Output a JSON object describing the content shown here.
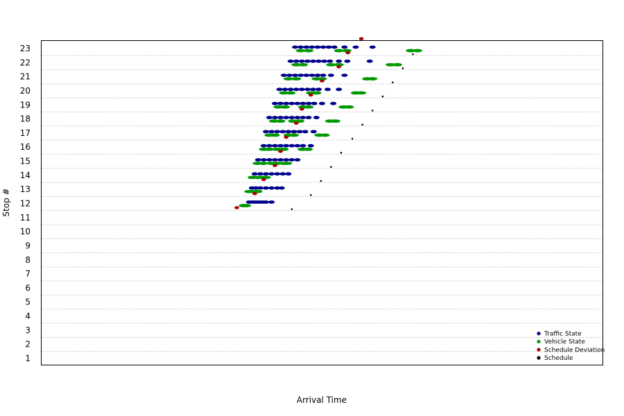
{
  "chart_data": {
    "type": "scatter",
    "title": "",
    "xlabel": "Arrival Time",
    "ylabel": "Stop #",
    "ylim": [
      0.5,
      23.5
    ],
    "xlim": [
      0,
      1
    ],
    "y_ticks": [
      "1",
      "2",
      "3",
      "4",
      "5",
      "6",
      "7",
      "8",
      "9",
      "10",
      "11",
      "12",
      "13",
      "14",
      "15",
      "16",
      "17",
      "18",
      "19",
      "20",
      "21",
      "22",
      "23"
    ],
    "x_ticks": [],
    "grid": "horizontal dotted",
    "legend_placement": "bottom-right",
    "colors": {
      "Traffic State": "#00008b",
      "Vehicle State": "#009900",
      "Schedule Deviation": "#aa0000",
      "Schedule": "#000000"
    },
    "series": [
      {
        "name": "Traffic State",
        "points": [
          [
            0.37,
            12.1
          ],
          [
            0.375,
            12.1
          ],
          [
            0.38,
            12.1
          ],
          [
            0.385,
            12.1
          ],
          [
            0.39,
            12.1
          ],
          [
            0.395,
            12.1
          ],
          [
            0.4,
            12.1
          ],
          [
            0.41,
            12.1
          ],
          [
            0.375,
            13.1
          ],
          [
            0.382,
            13.1
          ],
          [
            0.39,
            13.1
          ],
          [
            0.4,
            13.1
          ],
          [
            0.41,
            13.1
          ],
          [
            0.42,
            13.1
          ],
          [
            0.428,
            13.1
          ],
          [
            0.38,
            14.1
          ],
          [
            0.39,
            14.1
          ],
          [
            0.4,
            14.1
          ],
          [
            0.41,
            14.1
          ],
          [
            0.42,
            14.1
          ],
          [
            0.43,
            14.1
          ],
          [
            0.44,
            14.1
          ],
          [
            0.386,
            15.1
          ],
          [
            0.396,
            15.1
          ],
          [
            0.406,
            15.1
          ],
          [
            0.416,
            15.1
          ],
          [
            0.426,
            15.1
          ],
          [
            0.436,
            15.1
          ],
          [
            0.446,
            15.1
          ],
          [
            0.456,
            15.1
          ],
          [
            0.396,
            16.1
          ],
          [
            0.406,
            16.1
          ],
          [
            0.416,
            16.1
          ],
          [
            0.426,
            16.1
          ],
          [
            0.436,
            16.1
          ],
          [
            0.446,
            16.1
          ],
          [
            0.456,
            16.1
          ],
          [
            0.466,
            16.1
          ],
          [
            0.48,
            16.1
          ],
          [
            0.4,
            17.1
          ],
          [
            0.41,
            17.1
          ],
          [
            0.42,
            17.1
          ],
          [
            0.43,
            17.1
          ],
          [
            0.44,
            17.1
          ],
          [
            0.45,
            17.1
          ],
          [
            0.46,
            17.1
          ],
          [
            0.47,
            17.1
          ],
          [
            0.485,
            17.1
          ],
          [
            0.406,
            18.1
          ],
          [
            0.416,
            18.1
          ],
          [
            0.426,
            18.1
          ],
          [
            0.436,
            18.1
          ],
          [
            0.446,
            18.1
          ],
          [
            0.456,
            18.1
          ],
          [
            0.466,
            18.1
          ],
          [
            0.476,
            18.1
          ],
          [
            0.49,
            18.1
          ],
          [
            0.416,
            19.1
          ],
          [
            0.426,
            19.1
          ],
          [
            0.436,
            19.1
          ],
          [
            0.446,
            19.1
          ],
          [
            0.456,
            19.1
          ],
          [
            0.466,
            19.1
          ],
          [
            0.476,
            19.1
          ],
          [
            0.486,
            19.1
          ],
          [
            0.5,
            19.1
          ],
          [
            0.52,
            19.1
          ],
          [
            0.424,
            20.1
          ],
          [
            0.434,
            20.1
          ],
          [
            0.444,
            20.1
          ],
          [
            0.454,
            20.1
          ],
          [
            0.464,
            20.1
          ],
          [
            0.474,
            20.1
          ],
          [
            0.484,
            20.1
          ],
          [
            0.494,
            20.1
          ],
          [
            0.51,
            20.1
          ],
          [
            0.53,
            20.1
          ],
          [
            0.432,
            21.1
          ],
          [
            0.442,
            21.1
          ],
          [
            0.452,
            21.1
          ],
          [
            0.462,
            21.1
          ],
          [
            0.472,
            21.1
          ],
          [
            0.482,
            21.1
          ],
          [
            0.492,
            21.1
          ],
          [
            0.502,
            21.1
          ],
          [
            0.516,
            21.1
          ],
          [
            0.54,
            21.1
          ],
          [
            0.444,
            22.1
          ],
          [
            0.454,
            22.1
          ],
          [
            0.464,
            22.1
          ],
          [
            0.474,
            22.1
          ],
          [
            0.484,
            22.1
          ],
          [
            0.494,
            22.1
          ],
          [
            0.504,
            22.1
          ],
          [
            0.514,
            22.1
          ],
          [
            0.53,
            22.1
          ],
          [
            0.545,
            22.1
          ],
          [
            0.585,
            22.1
          ],
          [
            0.452,
            23.1
          ],
          [
            0.462,
            23.1
          ],
          [
            0.472,
            23.1
          ],
          [
            0.482,
            23.1
          ],
          [
            0.492,
            23.1
          ],
          [
            0.502,
            23.1
          ],
          [
            0.512,
            23.1
          ],
          [
            0.522,
            23.1
          ],
          [
            0.54,
            23.1
          ],
          [
            0.56,
            23.1
          ],
          [
            0.59,
            23.1
          ]
        ]
      },
      {
        "name": "Vehicle State",
        "points": [
          [
            0.36,
            11.85
          ],
          [
            0.365,
            11.85
          ],
          [
            0.37,
            12.85
          ],
          [
            0.378,
            12.85
          ],
          [
            0.385,
            12.85
          ],
          [
            0.376,
            13.85
          ],
          [
            0.386,
            13.85
          ],
          [
            0.396,
            13.85
          ],
          [
            0.4,
            13.85
          ],
          [
            0.385,
            14.85
          ],
          [
            0.395,
            14.85
          ],
          [
            0.41,
            14.85
          ],
          [
            0.42,
            14.85
          ],
          [
            0.432,
            14.85
          ],
          [
            0.438,
            14.85
          ],
          [
            0.396,
            15.85
          ],
          [
            0.406,
            15.85
          ],
          [
            0.42,
            15.85
          ],
          [
            0.432,
            15.85
          ],
          [
            0.465,
            15.85
          ],
          [
            0.475,
            15.85
          ],
          [
            0.406,
            16.85
          ],
          [
            0.416,
            16.85
          ],
          [
            0.44,
            16.85
          ],
          [
            0.45,
            16.85
          ],
          [
            0.495,
            16.85
          ],
          [
            0.505,
            16.85
          ],
          [
            0.414,
            17.85
          ],
          [
            0.426,
            17.85
          ],
          [
            0.448,
            17.85
          ],
          [
            0.46,
            17.85
          ],
          [
            0.514,
            17.85
          ],
          [
            0.524,
            17.85
          ],
          [
            0.422,
            18.85
          ],
          [
            0.434,
            18.85
          ],
          [
            0.466,
            18.85
          ],
          [
            0.476,
            18.85
          ],
          [
            0.538,
            18.85
          ],
          [
            0.548,
            18.85
          ],
          [
            0.432,
            19.85
          ],
          [
            0.444,
            19.85
          ],
          [
            0.48,
            19.85
          ],
          [
            0.49,
            19.85
          ],
          [
            0.56,
            19.85
          ],
          [
            0.57,
            19.85
          ],
          [
            0.44,
            20.85
          ],
          [
            0.454,
            20.85
          ],
          [
            0.49,
            20.85
          ],
          [
            0.5,
            20.85
          ],
          [
            0.58,
            20.85
          ],
          [
            0.59,
            20.85
          ],
          [
            0.454,
            21.85
          ],
          [
            0.466,
            21.85
          ],
          [
            0.516,
            21.85
          ],
          [
            0.53,
            21.85
          ],
          [
            0.622,
            21.85
          ],
          [
            0.634,
            21.85
          ],
          [
            0.462,
            22.85
          ],
          [
            0.476,
            22.85
          ],
          [
            0.53,
            22.85
          ],
          [
            0.544,
            22.85
          ],
          [
            0.658,
            22.85
          ],
          [
            0.67,
            22.85
          ]
        ]
      },
      {
        "name": "Schedule Deviation",
        "points": [
          [
            0.348,
            11.7
          ],
          [
            0.38,
            12.7
          ],
          [
            0.396,
            13.7
          ],
          [
            0.416,
            14.7
          ],
          [
            0.426,
            15.7
          ],
          [
            0.436,
            16.7
          ],
          [
            0.454,
            17.7
          ],
          [
            0.464,
            18.7
          ],
          [
            0.48,
            19.7
          ],
          [
            0.5,
            20.7
          ],
          [
            0.53,
            21.7
          ],
          [
            0.546,
            22.7
          ],
          [
            0.57,
            23.7
          ]
        ]
      },
      {
        "name": "Schedule",
        "points": [
          [
            0.446,
            11.6
          ],
          [
            0.48,
            12.6
          ],
          [
            0.498,
            13.6
          ],
          [
            0.516,
            14.6
          ],
          [
            0.534,
            15.6
          ],
          [
            0.554,
            16.6
          ],
          [
            0.572,
            17.6
          ],
          [
            0.59,
            18.6
          ],
          [
            0.608,
            19.6
          ],
          [
            0.626,
            20.6
          ],
          [
            0.644,
            21.6
          ],
          [
            0.662,
            22.6
          ]
        ]
      }
    ]
  }
}
